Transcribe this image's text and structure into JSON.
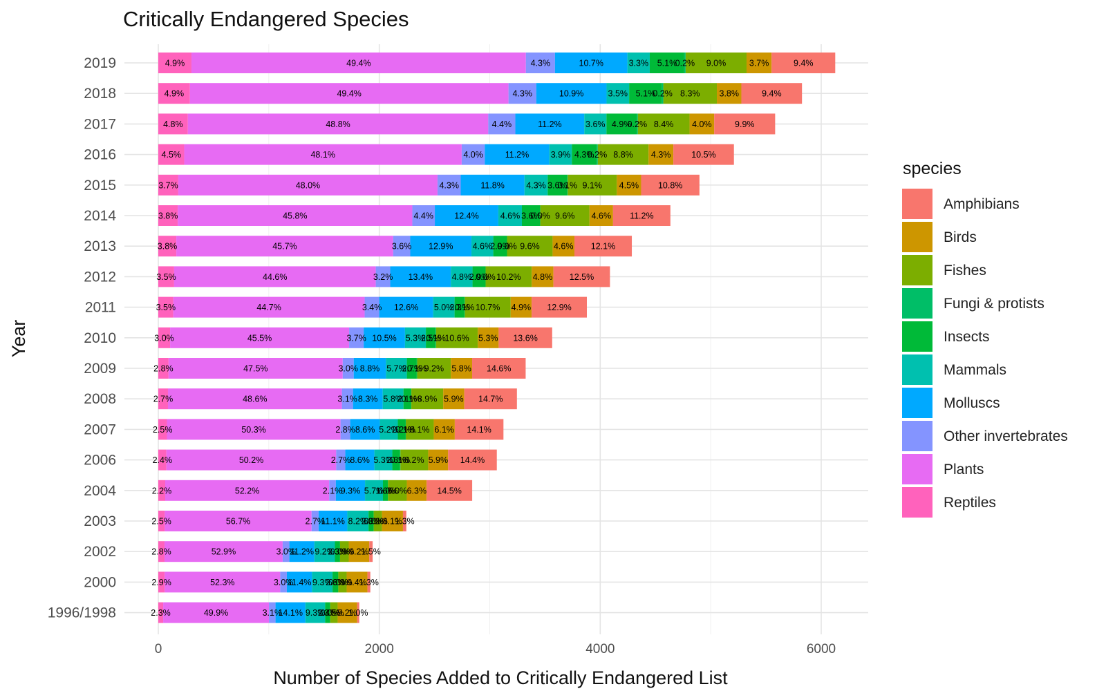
{
  "chart_data": {
    "type": "bar",
    "orientation": "horizontal",
    "stacked": true,
    "title": "Critically Endangered Species",
    "xlabel": "Number of Species Added to Critically Endangered List",
    "ylabel": "Year",
    "xlim": [
      0,
      6300
    ],
    "xticks": [
      "0",
      "2000",
      "4000",
      "6000"
    ],
    "xtick_values": [
      0,
      2000,
      4000,
      6000
    ],
    "grid": true,
    "legend_title": "species",
    "legend_position": "right",
    "categories": [
      "2019",
      "2018",
      "2017",
      "2016",
      "2015",
      "2014",
      "2013",
      "2012",
      "2011",
      "2010",
      "2009",
      "2008",
      "2007",
      "2006",
      "2004",
      "2003",
      "2002",
      "2000",
      "1996/1998"
    ],
    "totals": [
      6127,
      5826,
      5583,
      5210,
      4898,
      4635,
      4286,
      4088,
      3879,
      3565,
      3325,
      3246,
      3124,
      3064,
      2841,
      2245,
      1940,
      1919,
      1819
    ],
    "stack_order": [
      "Reptiles",
      "Plants",
      "Other invertebrates",
      "Molluscs",
      "Mammals",
      "Insects",
      "Fungi & protists",
      "Fishes",
      "Birds",
      "Amphibians"
    ],
    "series": [
      {
        "name": "Amphibians",
        "color": "#F8766D",
        "percent": [
          9.4,
          9.4,
          9.9,
          10.5,
          10.8,
          11.2,
          12.1,
          12.5,
          12.9,
          13.6,
          14.6,
          14.7,
          14.1,
          14.4,
          14.5,
          1.3,
          1.5,
          1.3,
          1.0
        ],
        "labels": [
          "9.4%",
          "9.4%",
          "9.9%",
          "10.5%",
          "10.8%",
          "11.2%",
          "12.1%",
          "12.5%",
          "12.9%",
          "13.6%",
          "14.6%",
          "14.7%",
          "14.1%",
          "14.4%",
          "14.5%",
          "1.3%",
          "1.5%",
          "1.3%",
          "1.0%"
        ]
      },
      {
        "name": "Birds",
        "color": "#CD9600",
        "percent": [
          3.7,
          3.8,
          4.0,
          4.3,
          4.5,
          4.6,
          4.6,
          4.8,
          4.9,
          5.3,
          5.8,
          5.9,
          6.1,
          5.9,
          6.3,
          8.1,
          9.2,
          9.4,
          9.2
        ],
        "labels": [
          "3.7%",
          "3.8%",
          "4.0%",
          "4.3%",
          "4.5%",
          "4.6%",
          "4.6%",
          "4.8%",
          "4.9%",
          "5.3%",
          "5.8%",
          "5.9%",
          "6.1%",
          "5.9%",
          "6.3%",
          "8.1%",
          "9.2%",
          "9.4%",
          "9.2%"
        ]
      },
      {
        "name": "Fishes",
        "color": "#7CAE00",
        "percent": [
          9.0,
          8.3,
          8.4,
          8.8,
          9.1,
          9.6,
          9.6,
          10.2,
          10.7,
          10.6,
          9.2,
          8.9,
          8.1,
          8.2,
          6.0,
          3.2,
          3.9,
          3.8,
          3.5
        ],
        "labels": [
          "9.0%",
          "8.3%",
          "8.4%",
          "8.8%",
          "9.1%",
          "9.6%",
          "9.6%",
          "10.2%",
          "10.7%",
          "10.6%",
          "9.2%",
          "8.9%",
          "8.1%",
          "8.2%",
          "6.0%",
          "3.2%",
          "3.9%",
          "3.8%",
          "3.5%"
        ]
      },
      {
        "name": "Fungi & protists",
        "color": "#00BE67",
        "percent": [
          0.2,
          0.2,
          0.2,
          0.2,
          0.1,
          0.0,
          0.0,
          0.0,
          0.1,
          0.1,
          0.1,
          0.1,
          0.1,
          0.1,
          0.0,
          0.0,
          0.0,
          0.0,
          0.0
        ],
        "labels": [
          "0.2%",
          "0.2%",
          "0.2%",
          "0.2%",
          "0.1%",
          "0.0%",
          "0.0%",
          "0.0%",
          "0.1%",
          "0.1%",
          "0.1%",
          "0.1%",
          "0.1%",
          "0.1%",
          "0.0%",
          "0.0%",
          "0.0%",
          "0.0%",
          "0.0%"
        ]
      },
      {
        "name": "Insects",
        "color": "#00BA38",
        "percent": [
          5.1,
          5.1,
          4.9,
          4.3,
          3.6,
          3.6,
          2.9,
          2.9,
          2.3,
          2.5,
          2.7,
          2.1,
          2.2,
          2.3,
          1.6,
          2.0,
          2.3,
          2.6,
          2.4
        ],
        "labels": [
          "5.1%",
          "5.1%",
          "4.9%",
          "4.3%",
          "3.6%",
          "3.6%",
          "2.9%",
          "2.9%",
          "2.3%",
          "2.5%",
          "2.7%",
          "2.1%",
          "2.2%",
          "2.3%",
          "1.6%",
          "2.0%",
          "2.3%",
          "2.6%",
          "2.4%"
        ]
      },
      {
        "name": "Mammals",
        "color": "#00C0AF",
        "percent": [
          3.3,
          3.5,
          3.6,
          3.9,
          4.3,
          4.6,
          4.6,
          4.8,
          5.0,
          5.3,
          5.7,
          5.8,
          5.2,
          5.3,
          5.7,
          8.2,
          9.2,
          9.3,
          9.3
        ],
        "labels": [
          "3.3%",
          "3.5%",
          "3.6%",
          "3.9%",
          "4.3%",
          "4.6%",
          "4.6%",
          "4.8%",
          "5.0%",
          "5.3%",
          "5.7%",
          "5.8%",
          "5.2%",
          "5.3%",
          "5.7%",
          "8.2%",
          "9.2%",
          "9.3%",
          "9.3%"
        ]
      },
      {
        "name": "Molluscs",
        "color": "#00A9FF",
        "percent": [
          10.7,
          10.9,
          11.2,
          11.2,
          11.8,
          12.4,
          12.9,
          13.4,
          12.6,
          10.5,
          8.8,
          8.3,
          8.6,
          8.6,
          9.3,
          11.1,
          11.2,
          11.4,
          14.1
        ],
        "labels": [
          "10.7%",
          "10.9%",
          "11.2%",
          "11.2%",
          "11.8%",
          "12.4%",
          "12.9%",
          "13.4%",
          "12.6%",
          "10.5%",
          "8.8%",
          "8.3%",
          "8.6%",
          "8.6%",
          "9.3%",
          "11.1%",
          "11.2%",
          "11.4%",
          "14.1%"
        ]
      },
      {
        "name": "Other invertebrates",
        "color": "#8494FF",
        "percent": [
          4.3,
          4.3,
          4.4,
          4.0,
          4.3,
          4.4,
          3.6,
          3.2,
          3.4,
          3.7,
          3.0,
          3.1,
          2.8,
          2.7,
          2.1,
          2.7,
          3.0,
          3.0,
          3.1
        ],
        "labels": [
          "4.3%",
          "4.3%",
          "4.4%",
          "4.0%",
          "4.3%",
          "4.4%",
          "3.6%",
          "3.2%",
          "3.4%",
          "3.7%",
          "3.0%",
          "3.1%",
          "2.8%",
          "2.7%",
          "2.1%",
          "2.7%",
          "3.0%",
          "3.0%",
          "3.1%"
        ]
      },
      {
        "name": "Plants",
        "color": "#E76BF3",
        "percent": [
          49.4,
          49.4,
          48.8,
          48.1,
          48.0,
          45.8,
          45.7,
          44.6,
          44.7,
          45.5,
          47.5,
          48.6,
          50.3,
          50.2,
          52.2,
          56.7,
          52.9,
          52.3,
          49.9
        ],
        "labels": [
          "49.4%",
          "49.4%",
          "48.8%",
          "48.1%",
          "48.0%",
          "45.8%",
          "45.7%",
          "44.6%",
          "44.7%",
          "45.5%",
          "47.5%",
          "48.6%",
          "50.3%",
          "50.2%",
          "52.2%",
          "56.7%",
          "52.9%",
          "52.3%",
          "49.9%"
        ]
      },
      {
        "name": "Reptiles",
        "color": "#FF62BC",
        "percent": [
          4.9,
          4.9,
          4.8,
          4.5,
          3.7,
          3.8,
          3.8,
          3.5,
          3.5,
          3.0,
          2.8,
          2.7,
          2.5,
          2.4,
          2.2,
          2.5,
          2.8,
          2.9,
          2.3
        ],
        "labels": [
          "4.9%",
          "4.9%",
          "4.8%",
          "4.5%",
          "3.7%",
          "3.8%",
          "3.8%",
          "3.5%",
          "3.5%",
          "3.0%",
          "2.8%",
          "2.7%",
          "2.5%",
          "2.4%",
          "2.2%",
          "2.5%",
          "2.8%",
          "2.9%",
          "2.3%"
        ]
      }
    ]
  }
}
